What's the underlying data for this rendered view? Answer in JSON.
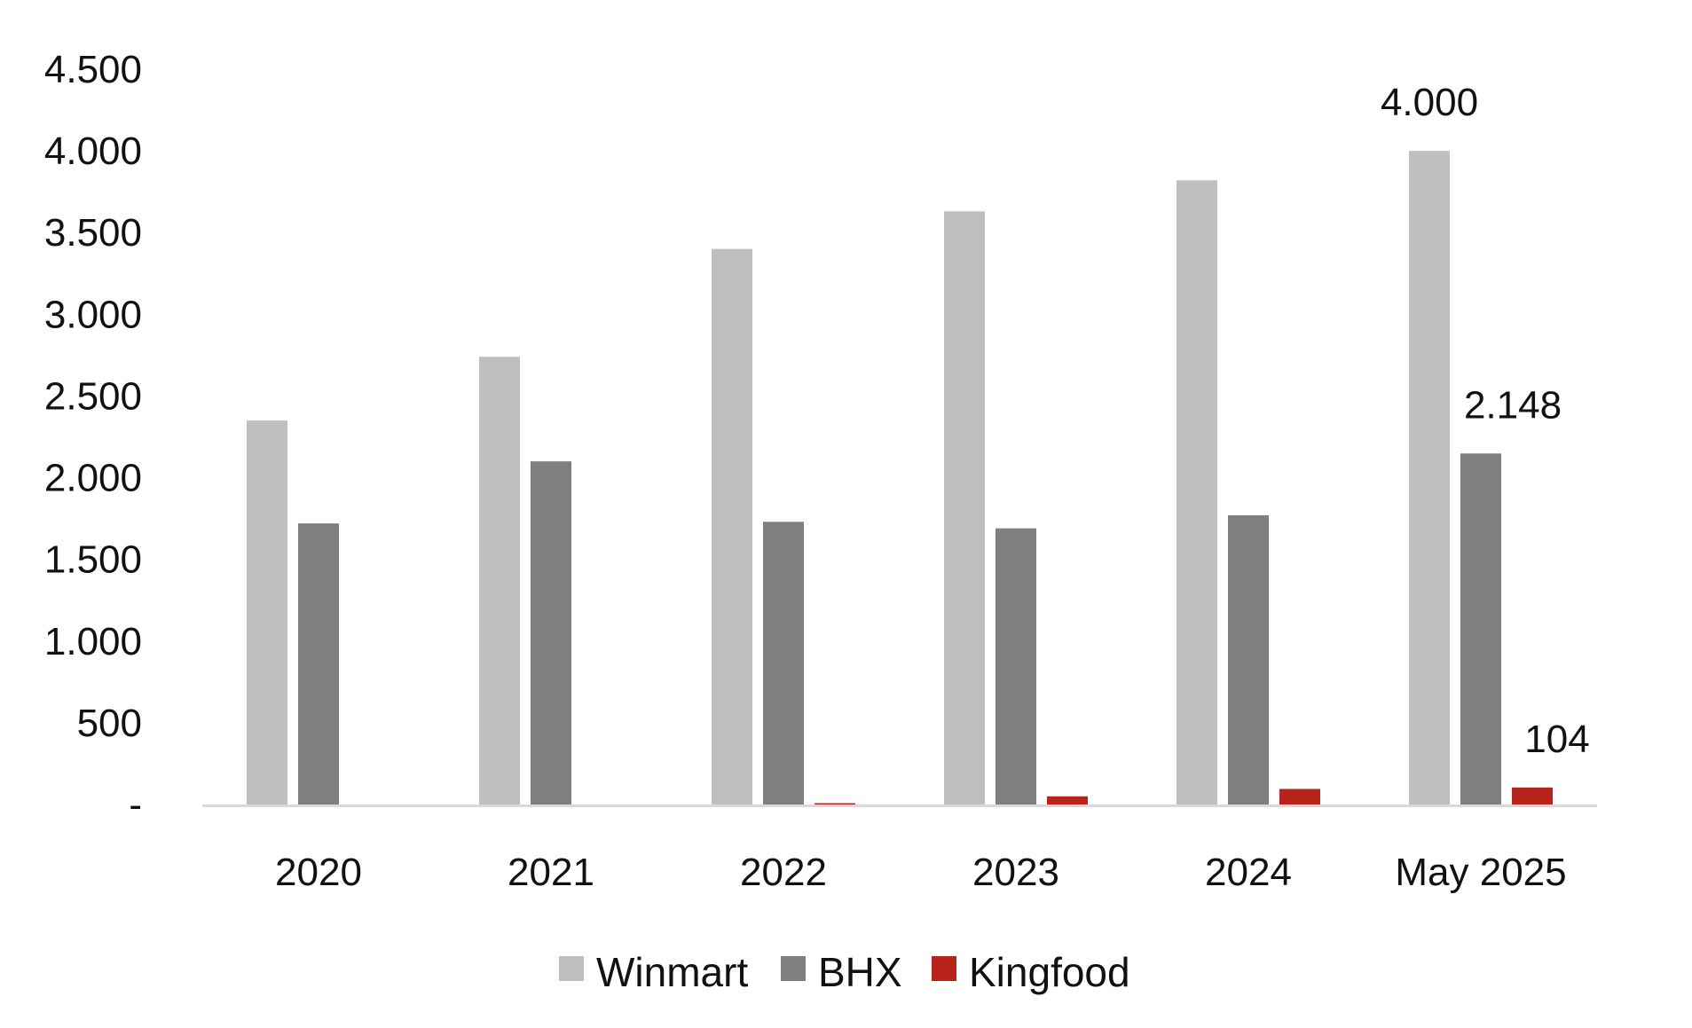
{
  "chart_data": {
    "type": "bar",
    "categories": [
      "2020",
      "2021",
      "2022",
      "2023",
      "2024",
      "May 2025"
    ],
    "series": [
      {
        "name": "Winmart",
        "color": "#bfbfbf",
        "values": [
          2350,
          2740,
          3400,
          3630,
          3820,
          4000
        ]
      },
      {
        "name": "BHX",
        "color": "#7f7f7f",
        "values": [
          1720,
          2100,
          1730,
          1690,
          1770,
          2148
        ]
      },
      {
        "name": "Kingfood",
        "color": "#b8231c",
        "values": [
          0,
          0,
          8,
          50,
          95,
          104
        ]
      }
    ],
    "ylim": [
      0,
      4500
    ],
    "y_ticks": [
      {
        "value": 0,
        "label": "-"
      },
      {
        "value": 500,
        "label": "500"
      },
      {
        "value": 1000,
        "label": "1.000"
      },
      {
        "value": 1500,
        "label": "1.500"
      },
      {
        "value": 2000,
        "label": "2.000"
      },
      {
        "value": 2500,
        "label": "2.500"
      },
      {
        "value": 3000,
        "label": "3.000"
      },
      {
        "value": 3500,
        "label": "3.500"
      },
      {
        "value": 4000,
        "label": "4.000"
      },
      {
        "value": 4500,
        "label": "4.500"
      }
    ],
    "data_labels": [
      {
        "series": 0,
        "category": 5,
        "text": "4.000"
      },
      {
        "series": 1,
        "category": 5,
        "text": "2.148"
      },
      {
        "series": 2,
        "category": 5,
        "text": "104"
      }
    ],
    "grid": false,
    "legend_position": "bottom-center",
    "axis_color": "#d9d9d9"
  }
}
